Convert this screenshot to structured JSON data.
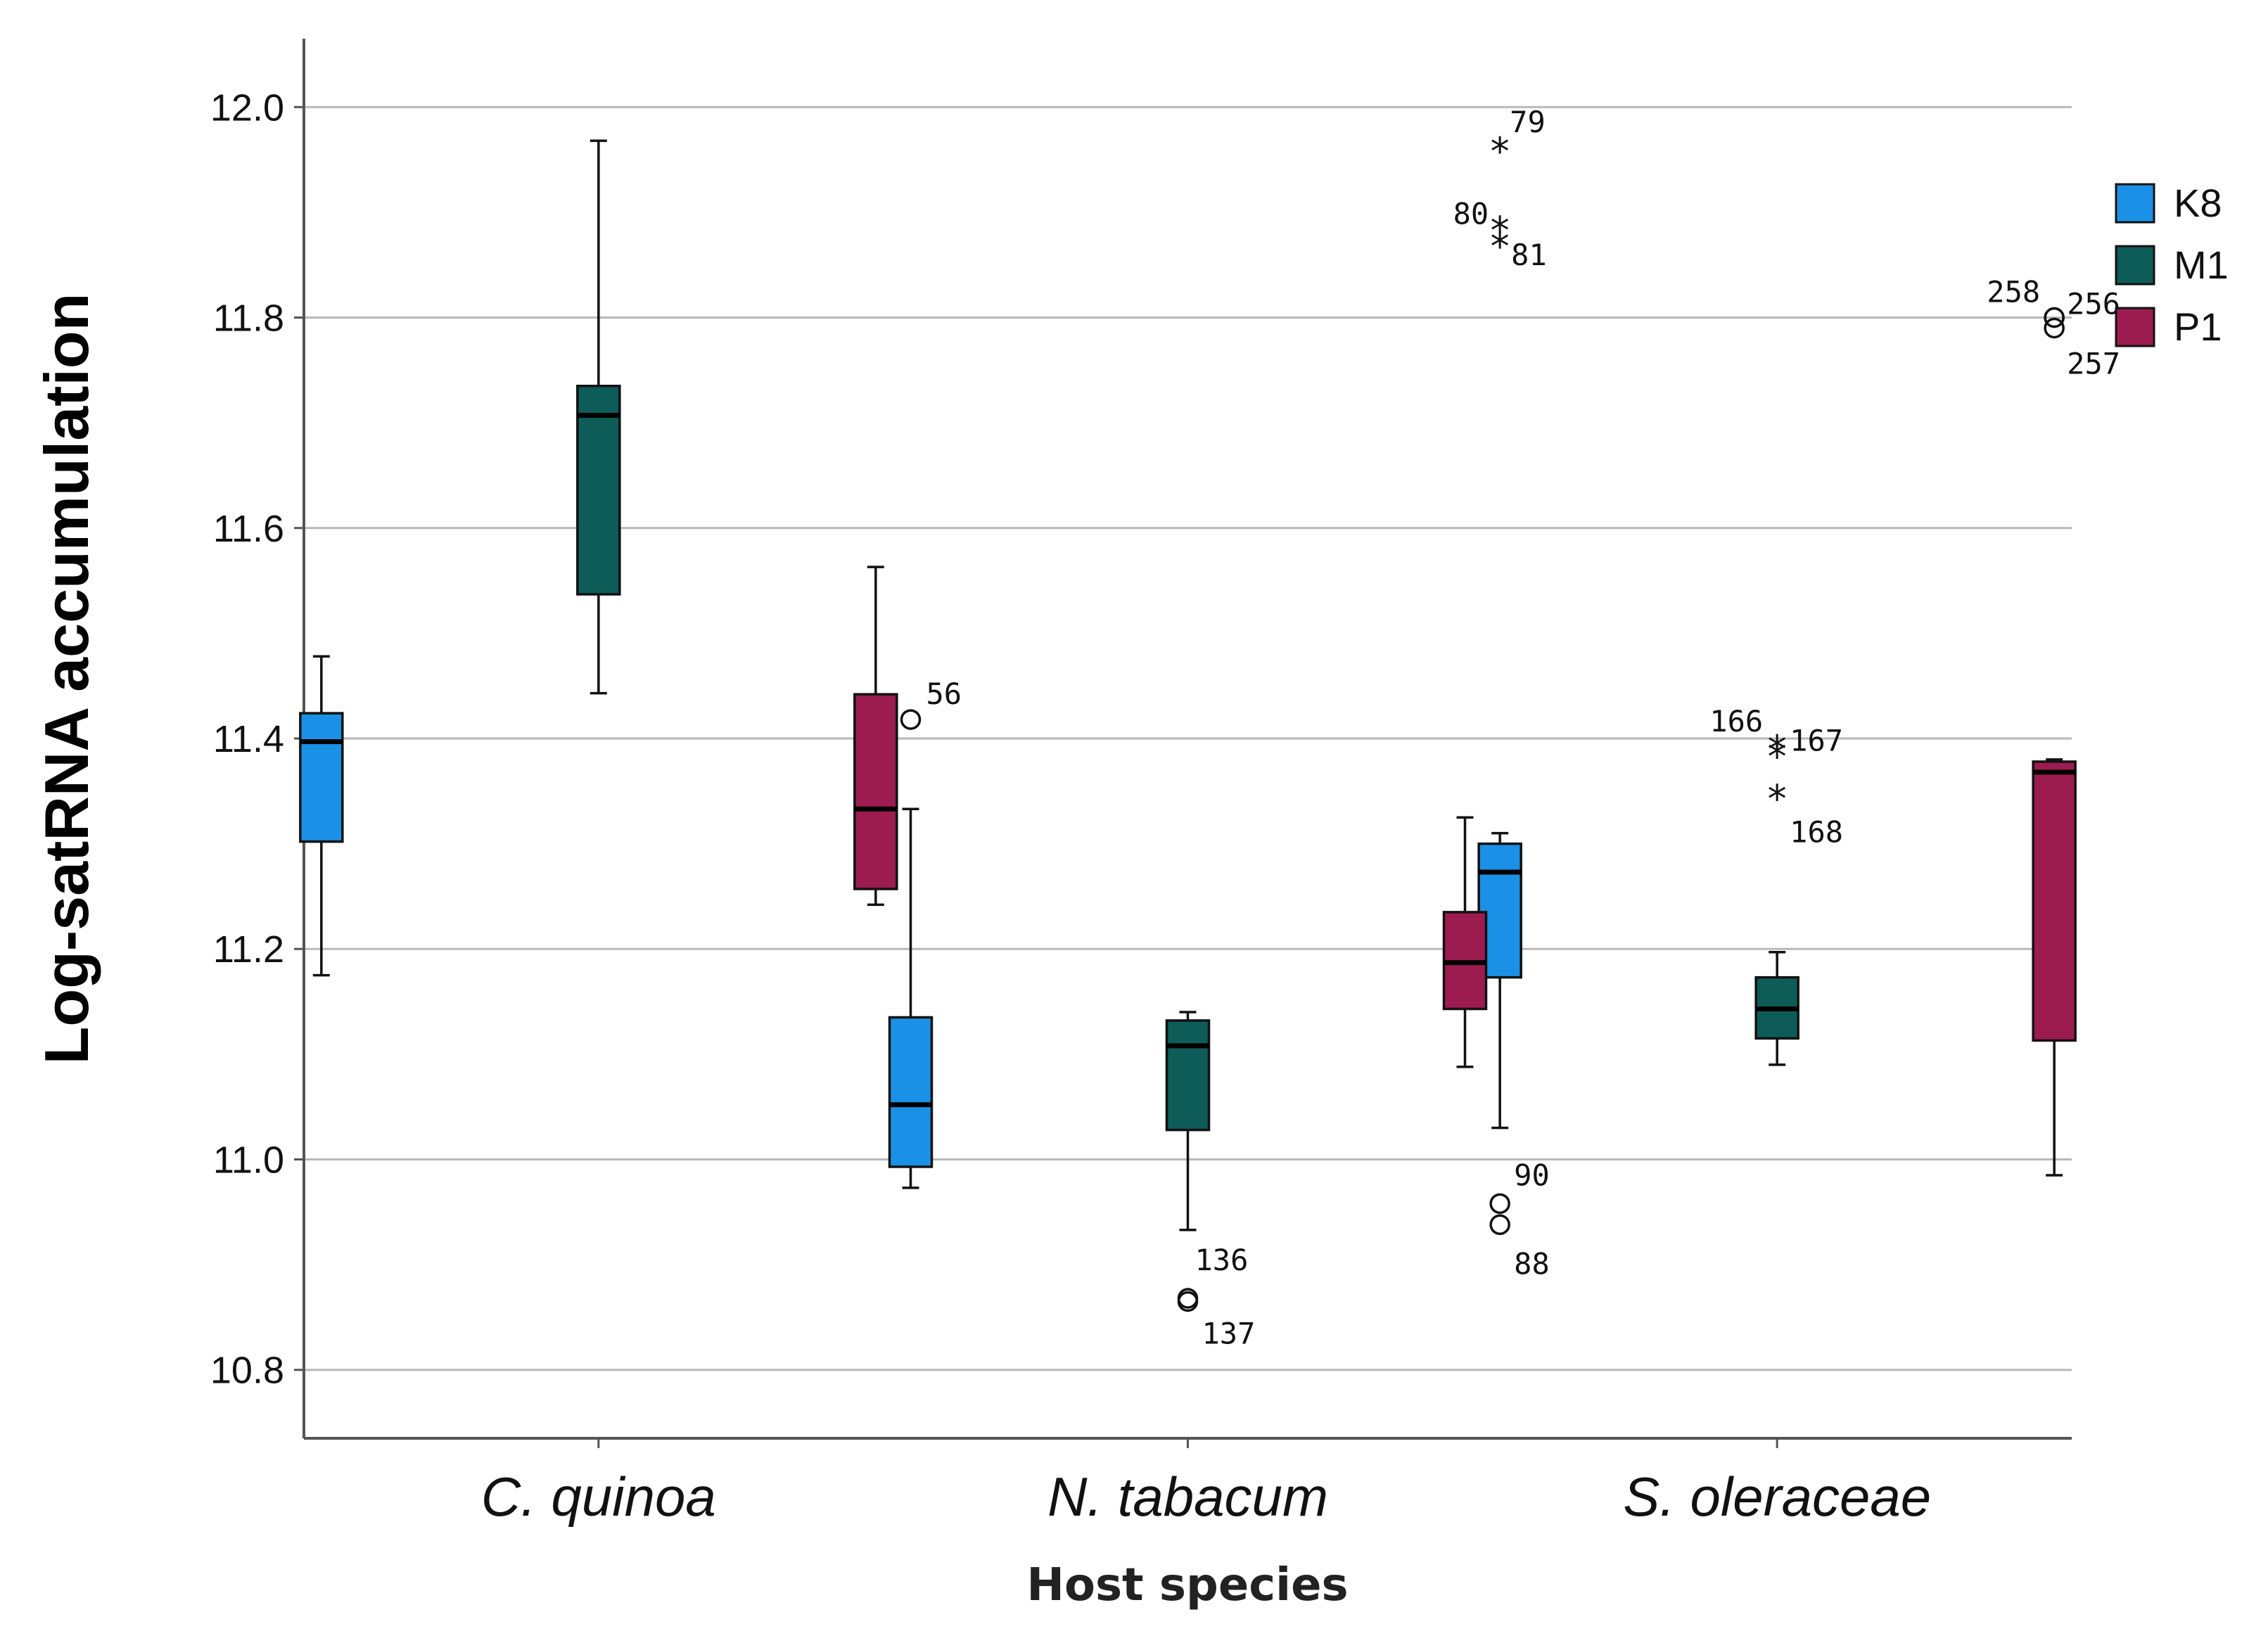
{
  "chart_data": {
    "type": "boxplot",
    "title": "",
    "xlabel": "Host species",
    "ylabel": "Log-satRNA accumulation",
    "ylim": [
      10.735,
      12.065
    ],
    "yticks": [
      "10.8",
      "11.0",
      "11.2",
      "11.4",
      "11.6",
      "11.8",
      "12.0"
    ],
    "grid": true,
    "legend_position": "right",
    "categories": [
      "C. quinoa",
      "N. tabacum",
      "S. oleraceae"
    ],
    "series": [
      {
        "name": "K8",
        "color": "#1a91e6",
        "boxes": [
          {
            "min": 11.175,
            "q1": 11.302,
            "median": 11.397,
            "q3": 11.424,
            "max": 11.478,
            "outliers": []
          },
          {
            "min": 10.973,
            "q1": 10.993,
            "median": 11.052,
            "q3": 11.135,
            "max": 11.333,
            "outliers": [
              {
                "value": 11.418,
                "label": "56",
                "symbol": "circle"
              }
            ]
          },
          {
            "min": 11.03,
            "q1": 11.173,
            "median": 11.273,
            "q3": 11.3,
            "max": 11.31,
            "outliers": [
              {
                "value": 11.96,
                "label": "79",
                "symbol": "star"
              },
              {
                "value": 11.885,
                "label": "80",
                "symbol": "star"
              },
              {
                "value": 11.87,
                "label": "81",
                "symbol": "star"
              },
              {
                "value": 10.958,
                "label": "90",
                "symbol": "circle"
              },
              {
                "value": 10.938,
                "label": "88",
                "symbol": "circle"
              }
            ]
          }
        ]
      },
      {
        "name": "M1",
        "color": "#0d5c58",
        "boxes": [
          {
            "min": 11.443,
            "q1": 11.537,
            "median": 11.707,
            "q3": 11.735,
            "max": 11.968,
            "outliers": []
          },
          {
            "min": 10.933,
            "q1": 11.028,
            "median": 11.108,
            "q3": 11.132,
            "max": 11.14,
            "outliers": [
              {
                "value": 10.868,
                "label": "136",
                "symbol": "circle"
              },
              {
                "value": 10.865,
                "label": "137",
                "symbol": "circle"
              }
            ]
          },
          {
            "min": 11.09,
            "q1": 11.115,
            "median": 11.143,
            "q3": 11.173,
            "max": 11.197,
            "outliers": [
              {
                "value": 11.392,
                "label": "166",
                "symbol": "star"
              },
              {
                "value": 11.385,
                "label": "167",
                "symbol": "star"
              },
              {
                "value": 11.345,
                "label": "168",
                "symbol": "star"
              }
            ]
          }
        ]
      },
      {
        "name": "P1",
        "color": "#9c1c4f",
        "boxes": [
          {
            "min": 11.242,
            "q1": 11.257,
            "median": 11.333,
            "q3": 11.442,
            "max": 11.563,
            "outliers": []
          },
          {
            "min": 11.088,
            "q1": 11.143,
            "median": 11.187,
            "q3": 11.235,
            "max": 11.325,
            "outliers": []
          },
          {
            "min": 10.985,
            "q1": 11.113,
            "median": 11.368,
            "q3": 11.378,
            "max": 11.38,
            "outliers": [
              {
                "value": 11.8,
                "label": "258",
                "symbol": "circle"
              },
              {
                "value": 11.8,
                "label": "256",
                "symbol": "circle"
              },
              {
                "value": 11.79,
                "label": "257",
                "symbol": "circle"
              }
            ]
          }
        ]
      }
    ]
  }
}
